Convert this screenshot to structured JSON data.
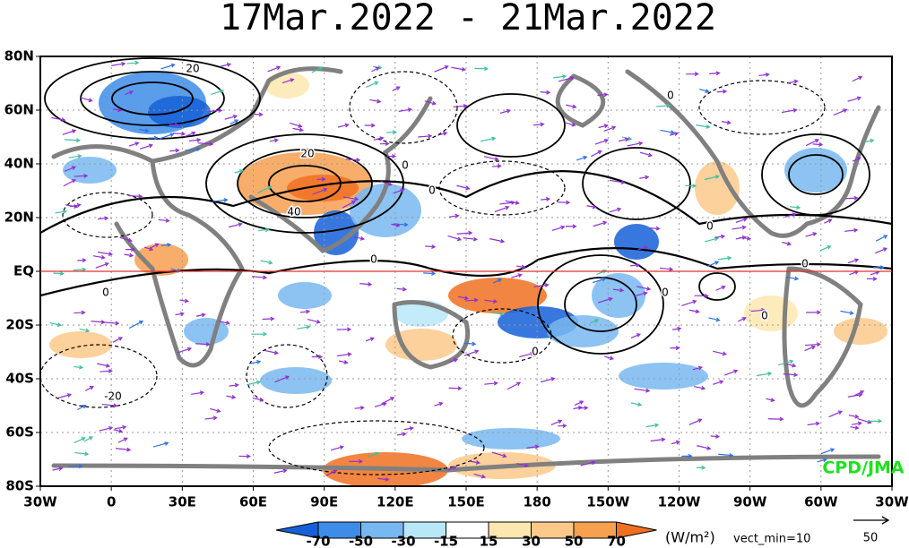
{
  "title": "17Mar.2022 - 21Mar.2022",
  "map": {
    "lat_labels": [
      "80N",
      "60N",
      "40N",
      "20N",
      "EQ",
      "20S",
      "40S",
      "60S",
      "80S"
    ],
    "lon_labels": [
      "30W",
      "0",
      "30E",
      "60E",
      "90E",
      "120E",
      "150E",
      "180",
      "150W",
      "120W",
      "90W",
      "60W",
      "30W"
    ],
    "contour_labels": [
      "20",
      "20",
      "40",
      "0",
      "0",
      "0",
      "0",
      "0",
      "0",
      "0",
      "0",
      "0",
      "0",
      "-20"
    ],
    "credit": "CPD/JMA"
  },
  "colorbar": {
    "labels": [
      "-70",
      "-50",
      "-30",
      "-15",
      "15",
      "30",
      "50",
      "70"
    ],
    "unit": "(W/m²)"
  },
  "vector_key": {
    "note": "vect_min=10",
    "label": "50"
  }
}
